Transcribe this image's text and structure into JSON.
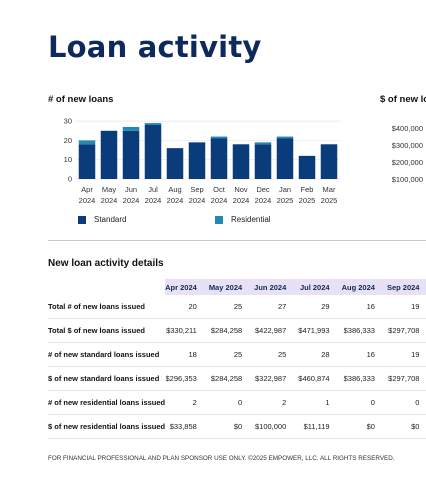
{
  "page": {
    "title": "Loan activity",
    "footer": "FOR FINANCIAL PROFESSIONAL AND PLAN SPONSOR USE ONLY. ©2025 EMPOWER, LLC. ALL RIGHTS RESERVED."
  },
  "colors": {
    "standard": "#0a3b7a",
    "residential": "#2488b0",
    "title": "#0e2a5c",
    "table_header_bg": "#e7e1f3"
  },
  "chart_data": [
    {
      "type": "bar",
      "stacked": true,
      "title": "# of new loans",
      "categories": [
        [
          "Apr",
          "2024"
        ],
        [
          "May",
          "2024"
        ],
        [
          "Jun",
          "2024"
        ],
        [
          "Jul",
          "2024"
        ],
        [
          "Aug",
          "2024"
        ],
        [
          "Sep",
          "2024"
        ],
        [
          "Oct",
          "2024"
        ],
        [
          "Nov",
          "2024"
        ],
        [
          "Dec",
          "2024"
        ],
        [
          "Jan",
          "2025"
        ],
        [
          "Feb",
          "2025"
        ],
        [
          "Mar",
          "2025"
        ]
      ],
      "series": [
        {
          "name": "Standard",
          "values": [
            18,
            25,
            25,
            28,
            16,
            19,
            21,
            18,
            18,
            21,
            12,
            18
          ]
        },
        {
          "name": "Residential",
          "values": [
            2,
            0,
            2,
            1,
            0,
            0,
            1,
            0,
            1,
            1,
            0,
            0
          ]
        }
      ],
      "yticks": [
        0,
        10,
        20,
        30
      ],
      "ylim": [
        0,
        35
      ],
      "grid": true,
      "legend_position": "bottom"
    },
    {
      "type": "bar",
      "title": "$ of new lo",
      "yticks": [
        "$100,000",
        "$200,000",
        "$300,000",
        "$400,000"
      ],
      "note": "partially visible, cut off at right edge"
    }
  ],
  "table": {
    "title": "New loan activity details",
    "columns": [
      "Apr 2024",
      "May 2024",
      "Jun 2024",
      "Jul 2024",
      "Aug 2024",
      "Sep 2024"
    ],
    "rows": [
      {
        "label": "Total # of new loans issued",
        "values": [
          "20",
          "25",
          "27",
          "29",
          "16",
          "19"
        ]
      },
      {
        "label": "Total $ of new loans issued",
        "values": [
          "$330,211",
          "$284,258",
          "$422,987",
          "$471,993",
          "$386,333",
          "$297,708"
        ]
      },
      {
        "label": "# of new standard loans issued",
        "values": [
          "18",
          "25",
          "25",
          "28",
          "16",
          "19"
        ]
      },
      {
        "label": "$ of new standard loans issued",
        "values": [
          "$296,353",
          "$284,258",
          "$322,987",
          "$460,874",
          "$386,333",
          "$297,708"
        ]
      },
      {
        "label": "# of new residential loans issued",
        "values": [
          "2",
          "0",
          "2",
          "1",
          "0",
          "0"
        ]
      },
      {
        "label": "$ of new residential loans issued",
        "values": [
          "$33,858",
          "$0",
          "$100,000",
          "$11,119",
          "$0",
          "$0"
        ]
      }
    ]
  }
}
